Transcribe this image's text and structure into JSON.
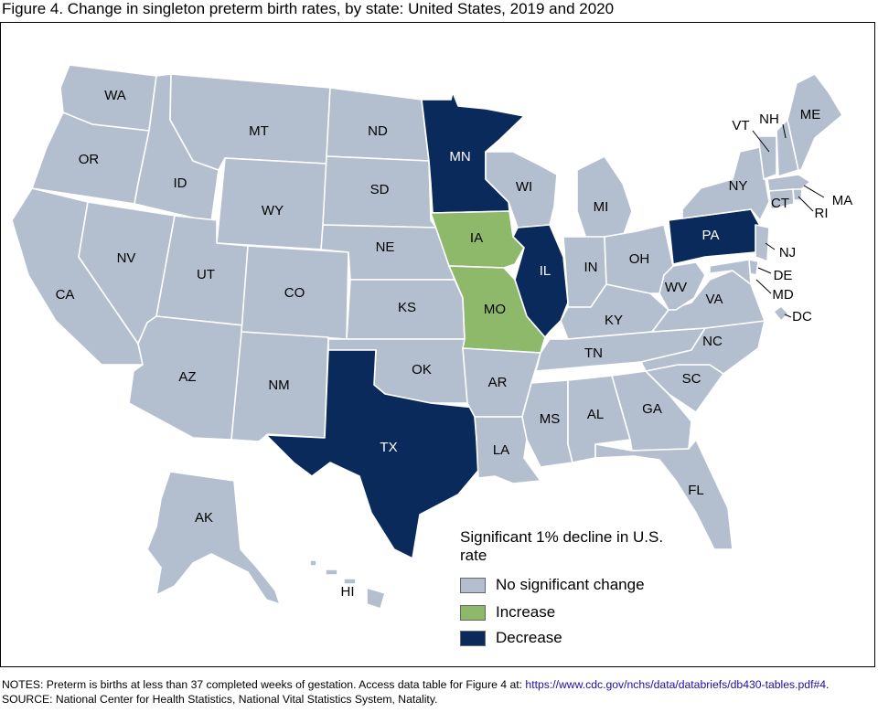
{
  "title": "Figure 4. Change in singleton preterm birth rates, by state: United States, 2019 and 2020",
  "colors": {
    "no_change": "#b3bfcf",
    "increase": "#8fb96a",
    "decrease": "#0a2a5c",
    "border": "#ffffff"
  },
  "legend": {
    "title": "Significant 1% decline in U.S. rate",
    "items": [
      {
        "label": "No significant change",
        "category": "no_change"
      },
      {
        "label": "Increase",
        "category": "increase"
      },
      {
        "label": "Decrease",
        "category": "decrease"
      }
    ]
  },
  "states": [
    {
      "abbr": "WA",
      "category": "no_change"
    },
    {
      "abbr": "OR",
      "category": "no_change"
    },
    {
      "abbr": "CA",
      "category": "no_change"
    },
    {
      "abbr": "ID",
      "category": "no_change"
    },
    {
      "abbr": "NV",
      "category": "no_change"
    },
    {
      "abbr": "MT",
      "category": "no_change"
    },
    {
      "abbr": "WY",
      "category": "no_change"
    },
    {
      "abbr": "UT",
      "category": "no_change"
    },
    {
      "abbr": "AZ",
      "category": "no_change"
    },
    {
      "abbr": "CO",
      "category": "no_change"
    },
    {
      "abbr": "NM",
      "category": "no_change"
    },
    {
      "abbr": "ND",
      "category": "no_change"
    },
    {
      "abbr": "SD",
      "category": "no_change"
    },
    {
      "abbr": "NE",
      "category": "no_change"
    },
    {
      "abbr": "KS",
      "category": "no_change"
    },
    {
      "abbr": "OK",
      "category": "no_change"
    },
    {
      "abbr": "TX",
      "category": "decrease"
    },
    {
      "abbr": "MN",
      "category": "decrease"
    },
    {
      "abbr": "IA",
      "category": "increase"
    },
    {
      "abbr": "MO",
      "category": "increase"
    },
    {
      "abbr": "AR",
      "category": "no_change"
    },
    {
      "abbr": "LA",
      "category": "no_change"
    },
    {
      "abbr": "WI",
      "category": "no_change"
    },
    {
      "abbr": "IL",
      "category": "decrease"
    },
    {
      "abbr": "MS",
      "category": "no_change"
    },
    {
      "abbr": "MI",
      "category": "no_change"
    },
    {
      "abbr": "IN",
      "category": "no_change"
    },
    {
      "abbr": "KY",
      "category": "no_change"
    },
    {
      "abbr": "TN",
      "category": "no_change"
    },
    {
      "abbr": "AL",
      "category": "no_change"
    },
    {
      "abbr": "OH",
      "category": "no_change"
    },
    {
      "abbr": "GA",
      "category": "no_change"
    },
    {
      "abbr": "FL",
      "category": "no_change"
    },
    {
      "abbr": "SC",
      "category": "no_change"
    },
    {
      "abbr": "NC",
      "category": "no_change"
    },
    {
      "abbr": "VA",
      "category": "no_change"
    },
    {
      "abbr": "WV",
      "category": "no_change"
    },
    {
      "abbr": "PA",
      "category": "decrease"
    },
    {
      "abbr": "NY",
      "category": "no_change"
    },
    {
      "abbr": "VT",
      "category": "no_change"
    },
    {
      "abbr": "NH",
      "category": "no_change"
    },
    {
      "abbr": "ME",
      "category": "no_change"
    },
    {
      "abbr": "MA",
      "category": "no_change"
    },
    {
      "abbr": "RI",
      "category": "no_change"
    },
    {
      "abbr": "CT",
      "category": "no_change"
    },
    {
      "abbr": "NJ",
      "category": "no_change"
    },
    {
      "abbr": "DE",
      "category": "no_change"
    },
    {
      "abbr": "MD",
      "category": "no_change"
    },
    {
      "abbr": "DC",
      "category": "no_change"
    },
    {
      "abbr": "AK",
      "category": "no_change"
    },
    {
      "abbr": "HI",
      "category": "no_change"
    }
  ],
  "notes": {
    "line1_text": "NOTES: Preterm is births at less than 37 completed weeks of gestation. Access data table for Figure 4 at: ",
    "link": "https://www.cdc.gov/nchs/data/databriefs/db430-tables.pdf#4",
    "line1_end": ".",
    "source": "SOURCE: National Center for Health Statistics, National Vital Statistics System, Natality."
  }
}
